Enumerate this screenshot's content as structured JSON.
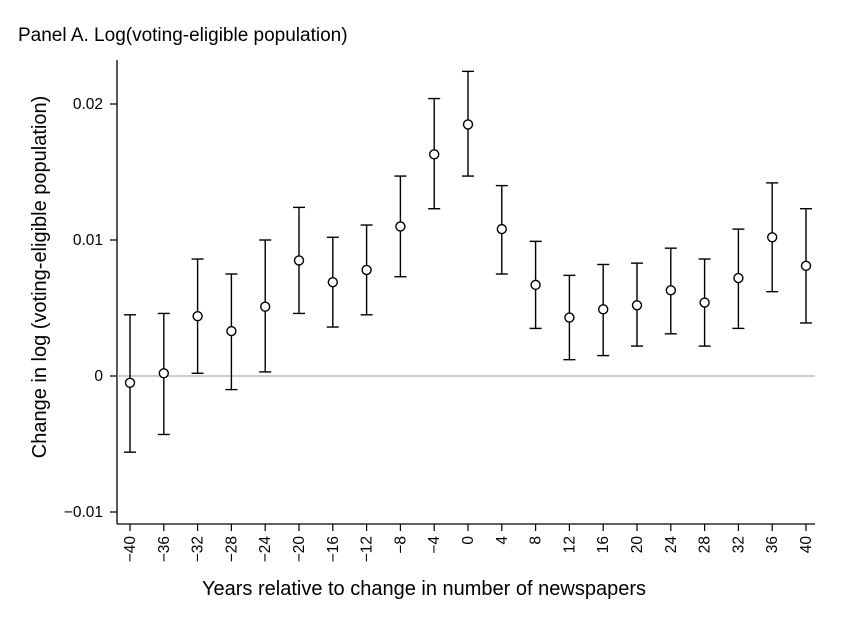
{
  "chart_data": {
    "type": "scatter",
    "title": "Panel A. Log(voting-eligible population)",
    "xlabel": "Years relative to change in number of newspapers",
    "ylabel": "Change in log (voting-eligible population)",
    "x_ticks": [
      "−40",
      "−36",
      "−32",
      "−28",
      "−24",
      "−20",
      "−16",
      "−12",
      "−8",
      "−4",
      "0",
      "4",
      "8",
      "12",
      "16",
      "20",
      "24",
      "28",
      "32",
      "36",
      "40"
    ],
    "y_ticks": [
      "−0.01",
      "0",
      "0.01",
      "0.02"
    ],
    "y_tick_values": [
      -0.01,
      0,
      0.01,
      0.02
    ],
    "ylim": [
      -0.0105,
      0.0232
    ],
    "reference_line_y": 0,
    "grid": false,
    "marker": "hollow-circle",
    "error_bars": true,
    "points": [
      {
        "x": -40,
        "y": -0.0005,
        "lo": -0.0056,
        "hi": 0.0045
      },
      {
        "x": -36,
        "y": 0.0002,
        "lo": -0.0043,
        "hi": 0.0046
      },
      {
        "x": -32,
        "y": 0.0044,
        "lo": 0.0002,
        "hi": 0.0086
      },
      {
        "x": -28,
        "y": 0.0033,
        "lo": -0.001,
        "hi": 0.0075
      },
      {
        "x": -24,
        "y": 0.0051,
        "lo": 0.0003,
        "hi": 0.01
      },
      {
        "x": -20,
        "y": 0.0085,
        "lo": 0.0046,
        "hi": 0.0124
      },
      {
        "x": -16,
        "y": 0.0069,
        "lo": 0.0036,
        "hi": 0.0102
      },
      {
        "x": -12,
        "y": 0.0078,
        "lo": 0.0045,
        "hi": 0.0111
      },
      {
        "x": -8,
        "y": 0.011,
        "lo": 0.0073,
        "hi": 0.0147
      },
      {
        "x": -4,
        "y": 0.0163,
        "lo": 0.0123,
        "hi": 0.0204
      },
      {
        "x": 0,
        "y": 0.0185,
        "lo": 0.0147,
        "hi": 0.0224
      },
      {
        "x": 4,
        "y": 0.0108,
        "lo": 0.0075,
        "hi": 0.014
      },
      {
        "x": 8,
        "y": 0.0067,
        "lo": 0.0035,
        "hi": 0.0099
      },
      {
        "x": 12,
        "y": 0.0043,
        "lo": 0.0012,
        "hi": 0.0074
      },
      {
        "x": 16,
        "y": 0.0049,
        "lo": 0.0015,
        "hi": 0.0082
      },
      {
        "x": 20,
        "y": 0.0052,
        "lo": 0.0022,
        "hi": 0.0083
      },
      {
        "x": 24,
        "y": 0.0063,
        "lo": 0.0031,
        "hi": 0.0094
      },
      {
        "x": 28,
        "y": 0.0054,
        "lo": 0.0022,
        "hi": 0.0086
      },
      {
        "x": 32,
        "y": 0.0072,
        "lo": 0.0035,
        "hi": 0.0108
      },
      {
        "x": 36,
        "y": 0.0102,
        "lo": 0.0062,
        "hi": 0.0142
      },
      {
        "x": 40,
        "y": 0.0081,
        "lo": 0.0039,
        "hi": 0.0123
      }
    ],
    "colors": {
      "marker": "#000000",
      "reference_line": "#bdbdbd",
      "axis": "#000000"
    }
  }
}
